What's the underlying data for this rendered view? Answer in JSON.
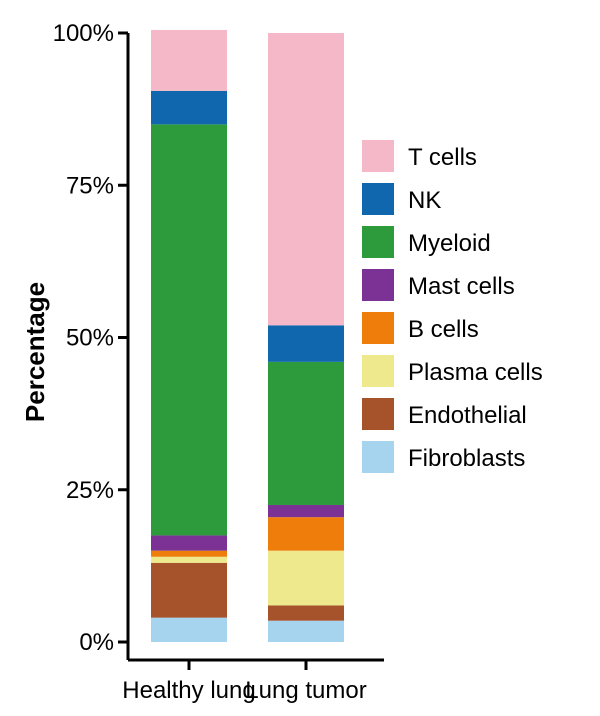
{
  "chart_data": {
    "type": "bar",
    "stacked": true,
    "categories": [
      "Healthy lung",
      "Lung tumor"
    ],
    "ylabel": "Percentage",
    "xlabel": "",
    "ylim": [
      0,
      100
    ],
    "yticks": [
      0,
      25,
      50,
      75,
      100
    ],
    "ytick_labels": [
      "0%",
      "25%",
      "50%",
      "75%",
      "100%"
    ],
    "legend_position": "right",
    "series": [
      {
        "name": "Fibroblasts",
        "color": "#a6d3ee",
        "values": [
          4.0,
          3.5
        ]
      },
      {
        "name": "Endothelial",
        "color": "#a6532b",
        "values": [
          9.0,
          2.5
        ]
      },
      {
        "name": "Plasma cells",
        "color": "#ede98c",
        "values": [
          1.0,
          9.0
        ]
      },
      {
        "name": "B cells",
        "color": "#ee7d0c",
        "values": [
          1.0,
          5.5
        ]
      },
      {
        "name": "Mast cells",
        "color": "#7b3294",
        "values": [
          2.5,
          2.0
        ]
      },
      {
        "name": "Myeloid",
        "color": "#2d9b3c",
        "values": [
          67.5,
          23.5
        ]
      },
      {
        "name": "NK",
        "color": "#1167ad",
        "values": [
          5.5,
          6.0
        ]
      },
      {
        "name": "T cells",
        "color": "#f4b8c8",
        "values": [
          10.0,
          48.0
        ]
      }
    ],
    "legend_order": [
      "T cells",
      "NK",
      "Myeloid",
      "Mast cells",
      "B cells",
      "Plasma cells",
      "Endothelial",
      "Fibroblasts"
    ]
  }
}
